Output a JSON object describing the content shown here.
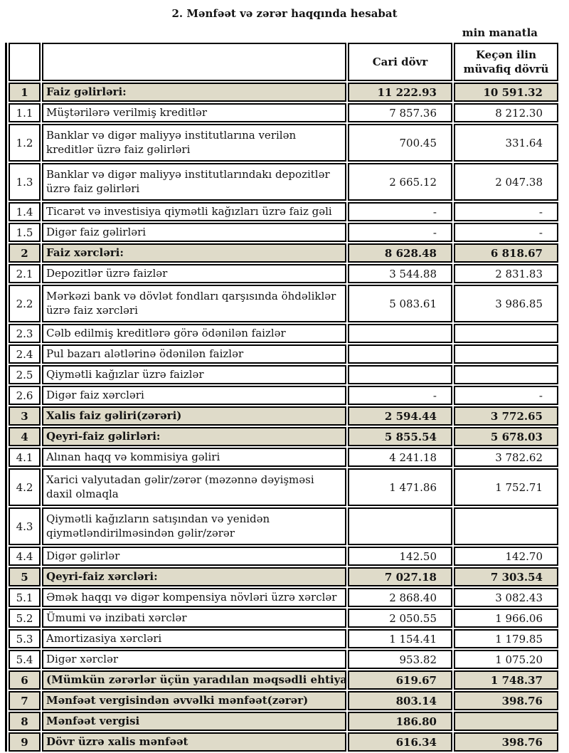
{
  "title": "2. Mənfəət və zərər haqqında hesabat",
  "unit_note": "min manatla",
  "colors": {
    "section_row_bg": "#dfdbc9",
    "border": "#000000",
    "page_bg": "#ffffff"
  },
  "table": {
    "header": {
      "current": "Cari dövr",
      "previous": "Keçən ilin müvafiq dövrü"
    },
    "rows": [
      {
        "no": "1",
        "label": "Faiz gəlirləri:",
        "current": "11 222.93",
        "previous": "10 591.32",
        "section": true,
        "tall": false,
        "clip": false
      },
      {
        "no": "1.1",
        "label": "Müştərilərə verilmiş kreditlər",
        "current": "7 857.36",
        "previous": "8 212.30",
        "section": false,
        "tall": false,
        "clip": false
      },
      {
        "no": "1.2",
        "label": "Banklar və digər maliyyə institutlarına verilən kreditlər üzrə faiz gəlirləri",
        "current": "700.45",
        "previous": "331.64",
        "section": false,
        "tall": true,
        "clip": false
      },
      {
        "no": "1.3",
        "label": "Banklar və digər maliyyə institutlarındakı depozitlər üzrə faiz gəlirləri",
        "current": "2 665.12",
        "previous": "2 047.38",
        "section": false,
        "tall": true,
        "clip": false
      },
      {
        "no": "1.4",
        "label": "Ticarət və investisiya qiymətli kağızları üzrə faiz gəli",
        "current": "-",
        "previous": "-",
        "section": false,
        "tall": false,
        "clip": true
      },
      {
        "no": "1.5",
        "label": "Digər faiz gəlirləri",
        "current": "-",
        "previous": "-",
        "section": false,
        "tall": false,
        "clip": false
      },
      {
        "no": "2",
        "label": "Faiz xərcləri:",
        "current": "8 628.48",
        "previous": "6 818.67",
        "section": true,
        "tall": false,
        "clip": false
      },
      {
        "no": "2.1",
        "label": "Depozitlər üzrə faizlər",
        "current": "3 544.88",
        "previous": "2 831.83",
        "section": false,
        "tall": false,
        "clip": false
      },
      {
        "no": "2.2",
        "label": "Mərkəzi bank və dövlət fondları qarşısında öhdəliklər üzrə faiz xərcləri",
        "current": "5 083.61",
        "previous": "3 986.85",
        "section": false,
        "tall": true,
        "clip": false
      },
      {
        "no": "2.3",
        "label": "Cəlb edilmiş kreditlərə görə ödənilən faizlər",
        "current": "",
        "previous": "",
        "section": false,
        "tall": false,
        "clip": false
      },
      {
        "no": "2.4",
        "label": "Pul bazarı alətlərinə ödənilən faizlər",
        "current": "",
        "previous": "",
        "section": false,
        "tall": false,
        "clip": false
      },
      {
        "no": "2.5",
        "label": "Qiymətli kağızlar üzrə faizlər",
        "current": "",
        "previous": "",
        "section": false,
        "tall": false,
        "clip": false
      },
      {
        "no": "2.6",
        "label": "Digər faiz xərcləri",
        "current": "-",
        "previous": "-",
        "section": false,
        "tall": false,
        "clip": false
      },
      {
        "no": "3",
        "label": "Xalis faiz gəliri(zərəri)",
        "current": "2 594.44",
        "previous": "3 772.65",
        "section": true,
        "tall": false,
        "clip": false
      },
      {
        "no": "4",
        "label": "Qeyri-faiz gəlirləri:",
        "current": "5 855.54",
        "previous": "5 678.03",
        "section": true,
        "tall": false,
        "clip": false
      },
      {
        "no": "4.1",
        "label": "Alınan haqq və kommisiya gəliri",
        "current": "4 241.18",
        "previous": "3 782.62",
        "section": false,
        "tall": false,
        "clip": false
      },
      {
        "no": "4.2",
        "label": "Xarici valyutadan gəlir/zərər (məzənnə dəyişməsi daxil olmaqla",
        "current": "1 471.86",
        "previous": "1 752.71",
        "section": false,
        "tall": true,
        "clip": false
      },
      {
        "no": "4.3",
        "label": "Qiymətli kağızların satışından və yenidən qiymətləndirilməsindən gəlir/zərər",
        "current": "",
        "previous": "",
        "section": false,
        "tall": true,
        "clip": false
      },
      {
        "no": "4.4",
        "label": "Digər gəlirlər",
        "current": "142.50",
        "previous": "142.70",
        "section": false,
        "tall": false,
        "clip": false
      },
      {
        "no": "5",
        "label": "Qeyri-faiz xərcləri:",
        "current": "7 027.18",
        "previous": "7 303.54",
        "section": true,
        "tall": false,
        "clip": false
      },
      {
        "no": "5.1",
        "label": "Əmək haqqı və digər kompensiya növləri üzrə xərclər",
        "current": "2 868.40",
        "previous": "3 082.43",
        "section": false,
        "tall": false,
        "clip": true
      },
      {
        "no": "5.2",
        "label": "Ümumi və inzibati xərclər",
        "current": "2 050.55",
        "previous": "1 966.06",
        "section": false,
        "tall": false,
        "clip": false
      },
      {
        "no": "5.3",
        "label": "Amortizasiya xərcləri",
        "current": "1 154.41",
        "previous": "1 179.85",
        "section": false,
        "tall": false,
        "clip": false
      },
      {
        "no": "5.4",
        "label": "Digər xərclər",
        "current": "953.82",
        "previous": "1 075.20",
        "section": false,
        "tall": false,
        "clip": false
      },
      {
        "no": "6",
        "label": "(Mümkün zərərlər üçün yaradılan məqsədli ehtiyat",
        "current": "619.67",
        "previous": "1 748.37",
        "section": true,
        "tall": false,
        "clip": true
      },
      {
        "no": "7",
        "label": "Mənfəət vergisindən əvvəlki mənfəət(zərər)",
        "current": "803.14",
        "previous": "398.76",
        "section": true,
        "tall": false,
        "clip": false
      },
      {
        "no": "8",
        "label": "Mənfəət vergisi",
        "current": "186.80",
        "previous": "",
        "section": true,
        "tall": false,
        "clip": false
      },
      {
        "no": "9",
        "label": "Dövr üzrə xalis mənfəət",
        "current": "616.34",
        "previous": "398.76",
        "section": true,
        "tall": false,
        "clip": false
      }
    ]
  }
}
